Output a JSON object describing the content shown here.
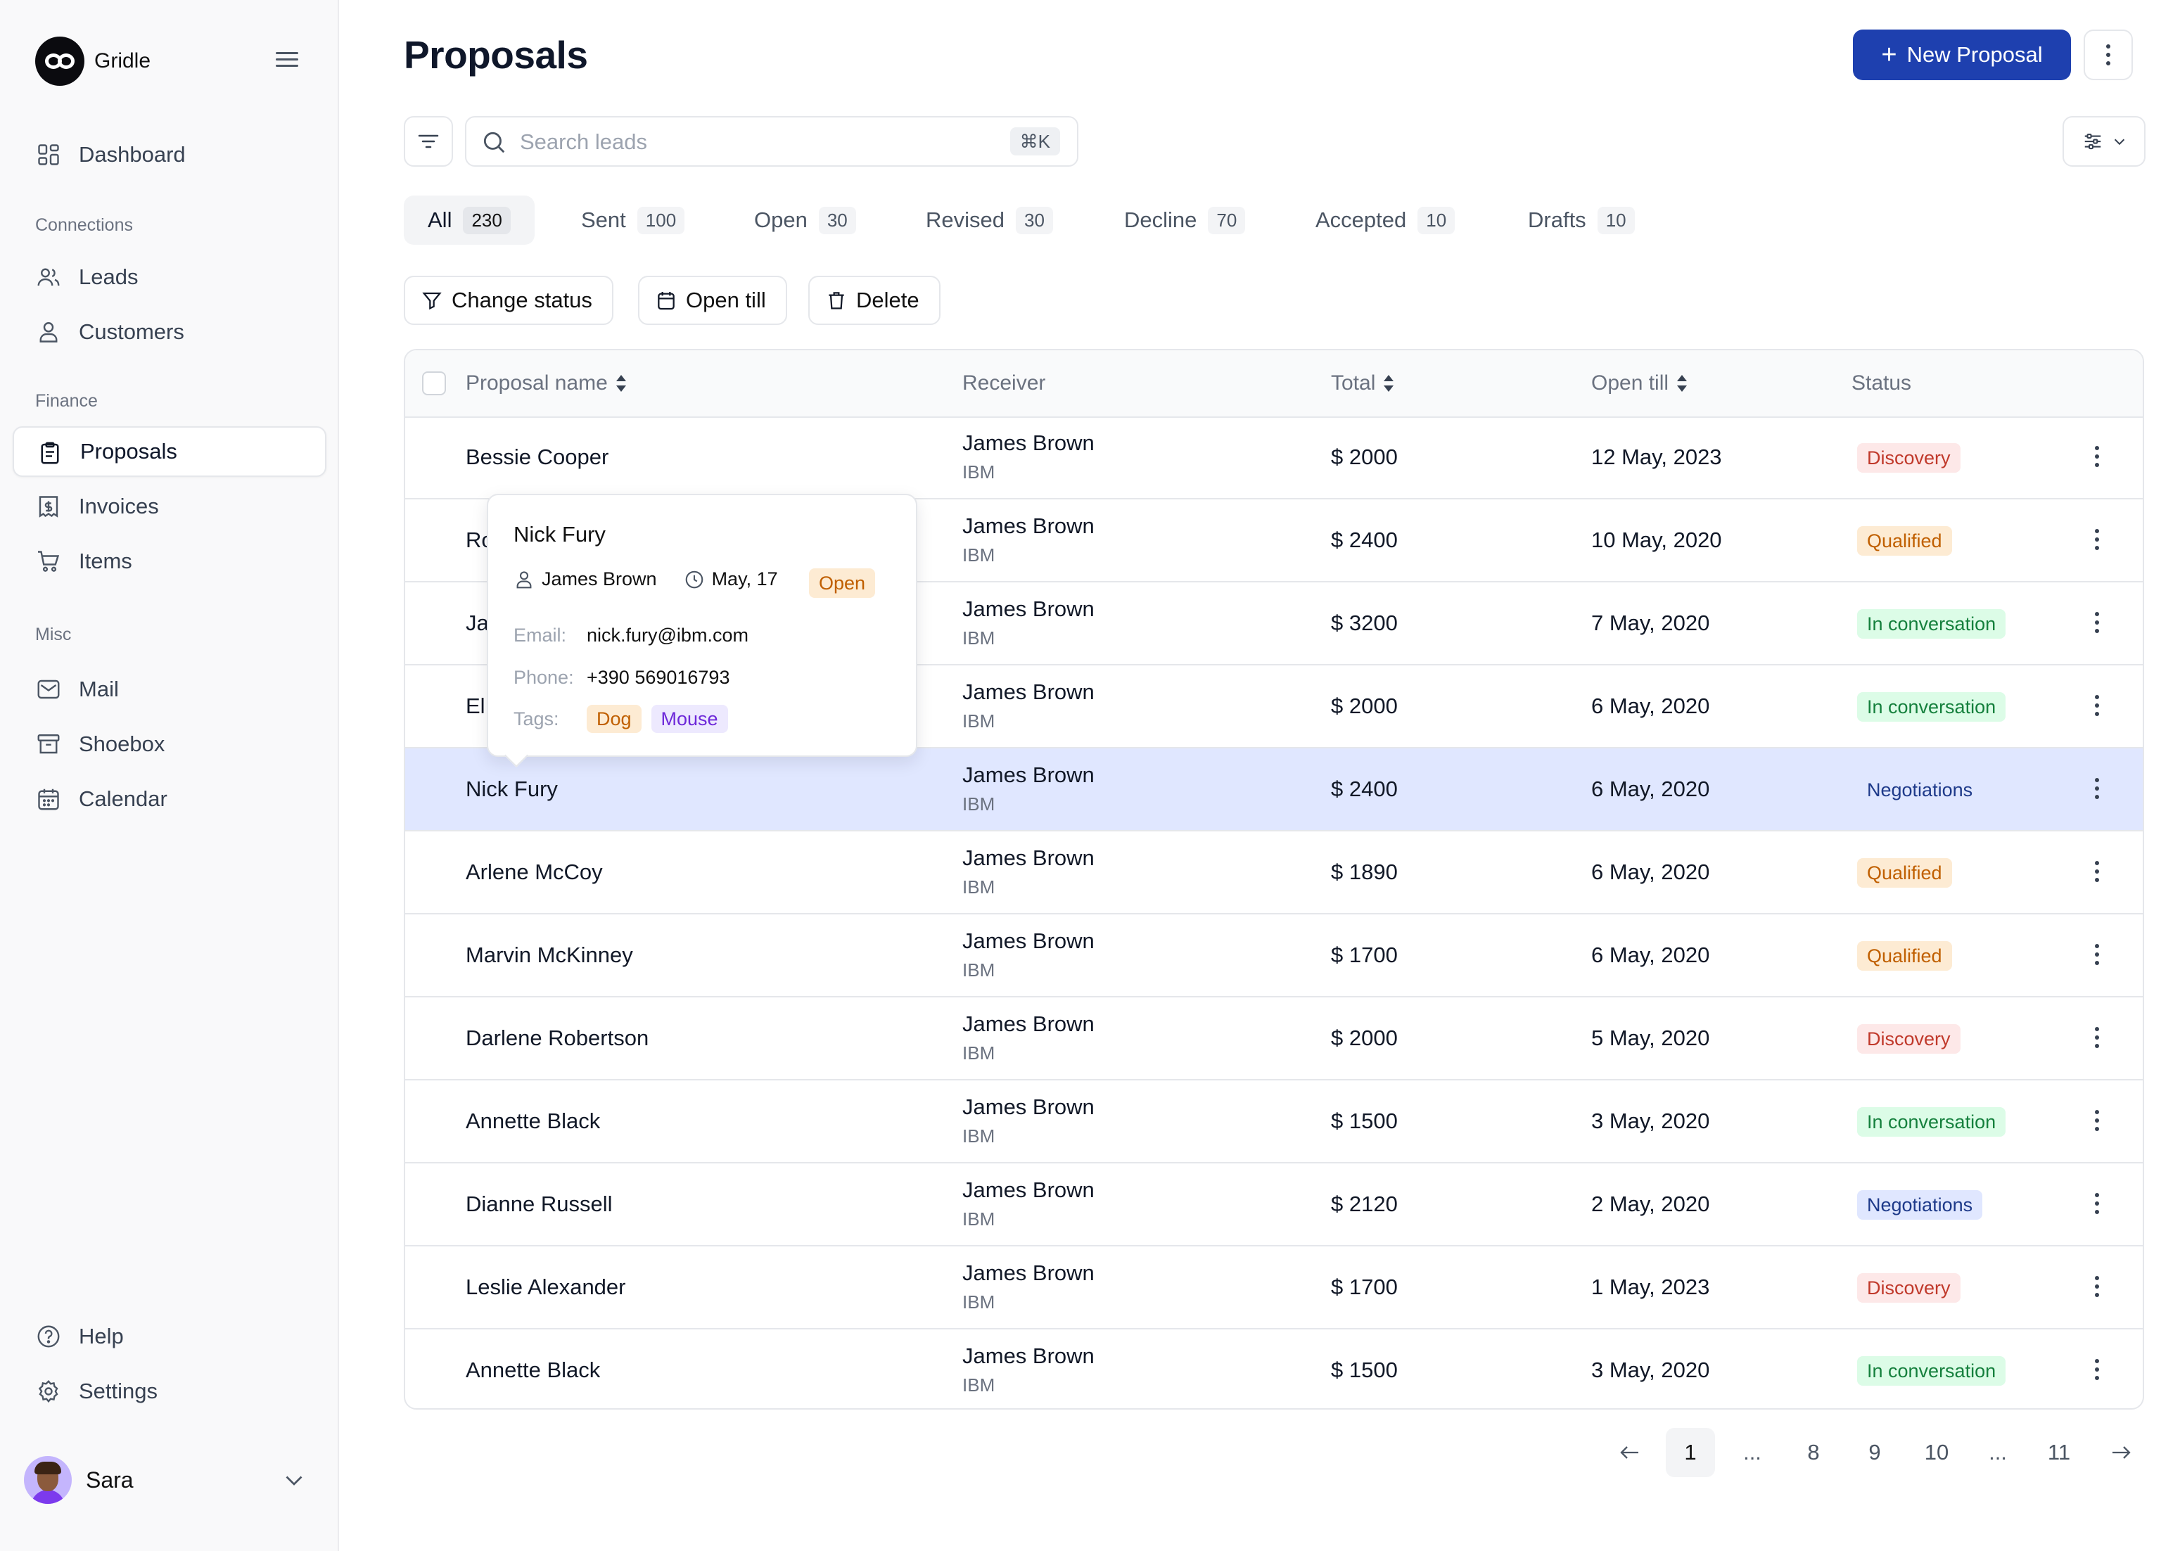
{
  "app": {
    "name": "Gridle"
  },
  "sidebar": {
    "dashboard": "Dashboard",
    "sections": {
      "connections": "Connections",
      "finance": "Finance",
      "misc": "Misc"
    },
    "leads": "Leads",
    "customers": "Customers",
    "proposals": "Proposals",
    "invoices": "Invoices",
    "items": "Items",
    "mail": "Mail",
    "shoebox": "Shoebox",
    "calendar": "Calendar",
    "help": "Help",
    "settings": "Settings",
    "user": "Sara"
  },
  "header": {
    "title": "Proposals",
    "new_button": "New Proposal"
  },
  "search": {
    "placeholder": "Search leads",
    "shortcut": "⌘K"
  },
  "tabs": [
    {
      "label": "All",
      "count": "230"
    },
    {
      "label": "Sent",
      "count": "100"
    },
    {
      "label": "Open",
      "count": "30"
    },
    {
      "label": "Revised",
      "count": "30"
    },
    {
      "label": "Decline",
      "count": "70"
    },
    {
      "label": "Accepted",
      "count": "10"
    },
    {
      "label": "Drafts",
      "count": "10"
    }
  ],
  "actions": {
    "change_status": "Change status",
    "open_till": "Open till",
    "delete": "Delete"
  },
  "table": {
    "columns": {
      "name": "Proposal name",
      "receiver": "Receiver",
      "total": "Total",
      "open_till": "Open till",
      "status": "Status"
    },
    "rows": [
      {
        "name": "Bessie Cooper",
        "receiver": "James Brown",
        "company": "IBM",
        "total": "$ 2000",
        "date": "12 May, 2023",
        "status": "Discovery"
      },
      {
        "name": "Ro",
        "receiver": "James Brown",
        "company": "IBM",
        "total": "$ 2400",
        "date": "10 May, 2020",
        "status": "Qualified"
      },
      {
        "name": "Ja",
        "receiver": "James Brown",
        "company": "IBM",
        "total": "$ 3200",
        "date": "7 May, 2020",
        "status": "In conversation"
      },
      {
        "name": "El",
        "receiver": "James Brown",
        "company": "IBM",
        "total": "$ 2000",
        "date": "6 May, 2020",
        "status": "In conversation"
      },
      {
        "name": "Nick Fury",
        "receiver": "James Brown",
        "company": "IBM",
        "total": "$ 2400",
        "date": "6 May, 2020",
        "status": "Negotiations"
      },
      {
        "name": "Arlene McCoy",
        "receiver": "James Brown",
        "company": "IBM",
        "total": "$ 1890",
        "date": "6 May, 2020",
        "status": "Qualified"
      },
      {
        "name": "Marvin McKinney",
        "receiver": "James Brown",
        "company": "IBM",
        "total": "$ 1700",
        "date": "6 May, 2020",
        "status": "Qualified"
      },
      {
        "name": "Darlene Robertson",
        "receiver": "James Brown",
        "company": "IBM",
        "total": "$ 2000",
        "date": "5 May, 2020",
        "status": "Discovery"
      },
      {
        "name": "Annette Black",
        "receiver": "James Brown",
        "company": "IBM",
        "total": "$ 1500",
        "date": "3 May, 2020",
        "status": "In conversation"
      },
      {
        "name": "Dianne Russell",
        "receiver": "James Brown",
        "company": "IBM",
        "total": "$ 2120",
        "date": "2 May, 2020",
        "status": "Negotiations"
      },
      {
        "name": "Leslie Alexander",
        "receiver": "James Brown",
        "company": "IBM",
        "total": "$ 1700",
        "date": "1 May, 2023",
        "status": "Discovery"
      },
      {
        "name": "Annette Black",
        "receiver": "James Brown",
        "company": "IBM",
        "total": "$ 1500",
        "date": "3 May, 2020",
        "status": "In conversation"
      }
    ]
  },
  "popover": {
    "title": "Nick Fury",
    "owner": "James Brown",
    "date": "May, 17",
    "status": "Open",
    "email_label": "Email:",
    "email": "nick.fury@ibm.com",
    "phone_label": "Phone:",
    "phone": "+390 569016793",
    "tags_label": "Tags:",
    "tags": [
      "Dog",
      "Mouse"
    ]
  },
  "pagination": {
    "pages": [
      "1",
      "...",
      "8",
      "9",
      "10",
      "...",
      "11"
    ],
    "current": "1"
  }
}
